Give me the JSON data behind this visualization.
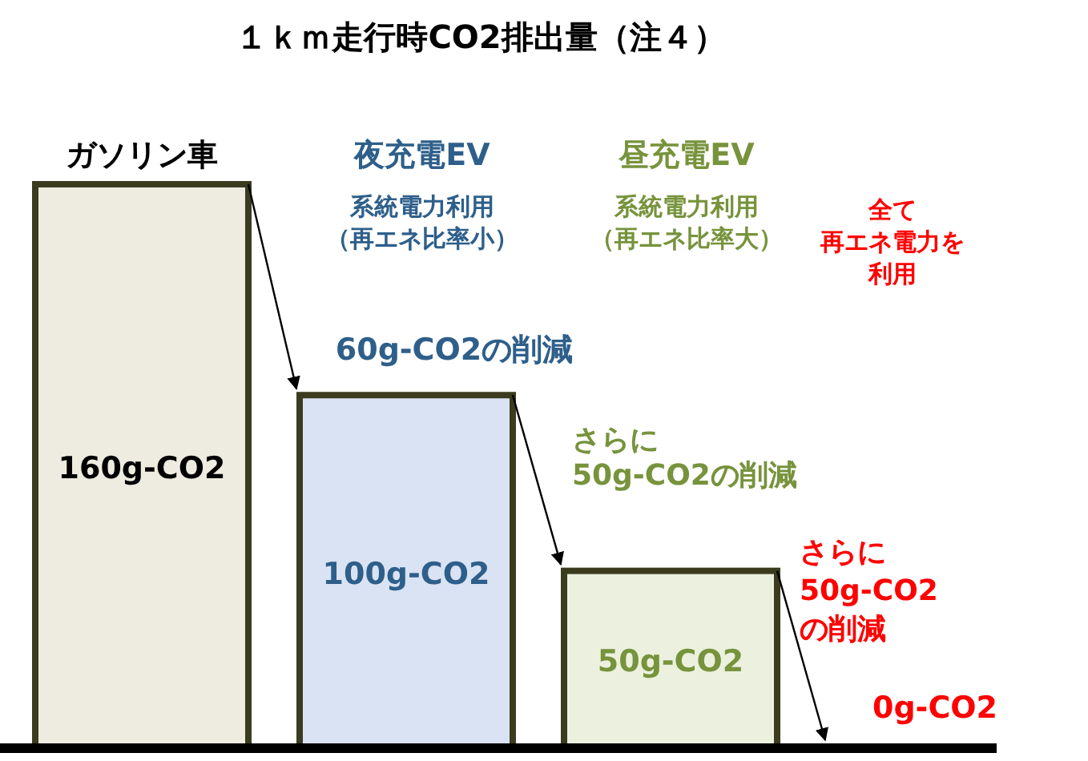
{
  "chart_data": {
    "type": "bar",
    "title": "１ｋｍ走行時CO2排出量（注４）",
    "categories": [
      "ガソリン車",
      "夜充電EV",
      "昼充電EV",
      null
    ],
    "values": [
      160,
      100,
      50,
      0
    ],
    "colors": [
      "#eeebe0",
      "#dae3f3",
      "#ebf1de",
      "#ffffff"
    ],
    "value_labels": [
      "160g-CO2",
      "100g-CO2",
      "50g-CO2",
      "0g-CO2"
    ],
    "annotations": [
      "系統電力利用",
      "（再エネ比率小）",
      "系統電力利用",
      "（再エネ比率大）",
      "全て",
      "再エネ電力を",
      "利用",
      "60g-CO2の削減",
      "さらに",
      "50g-CO2の削減",
      "さらに",
      "50g-CO2",
      "の削減"
    ]
  }
}
